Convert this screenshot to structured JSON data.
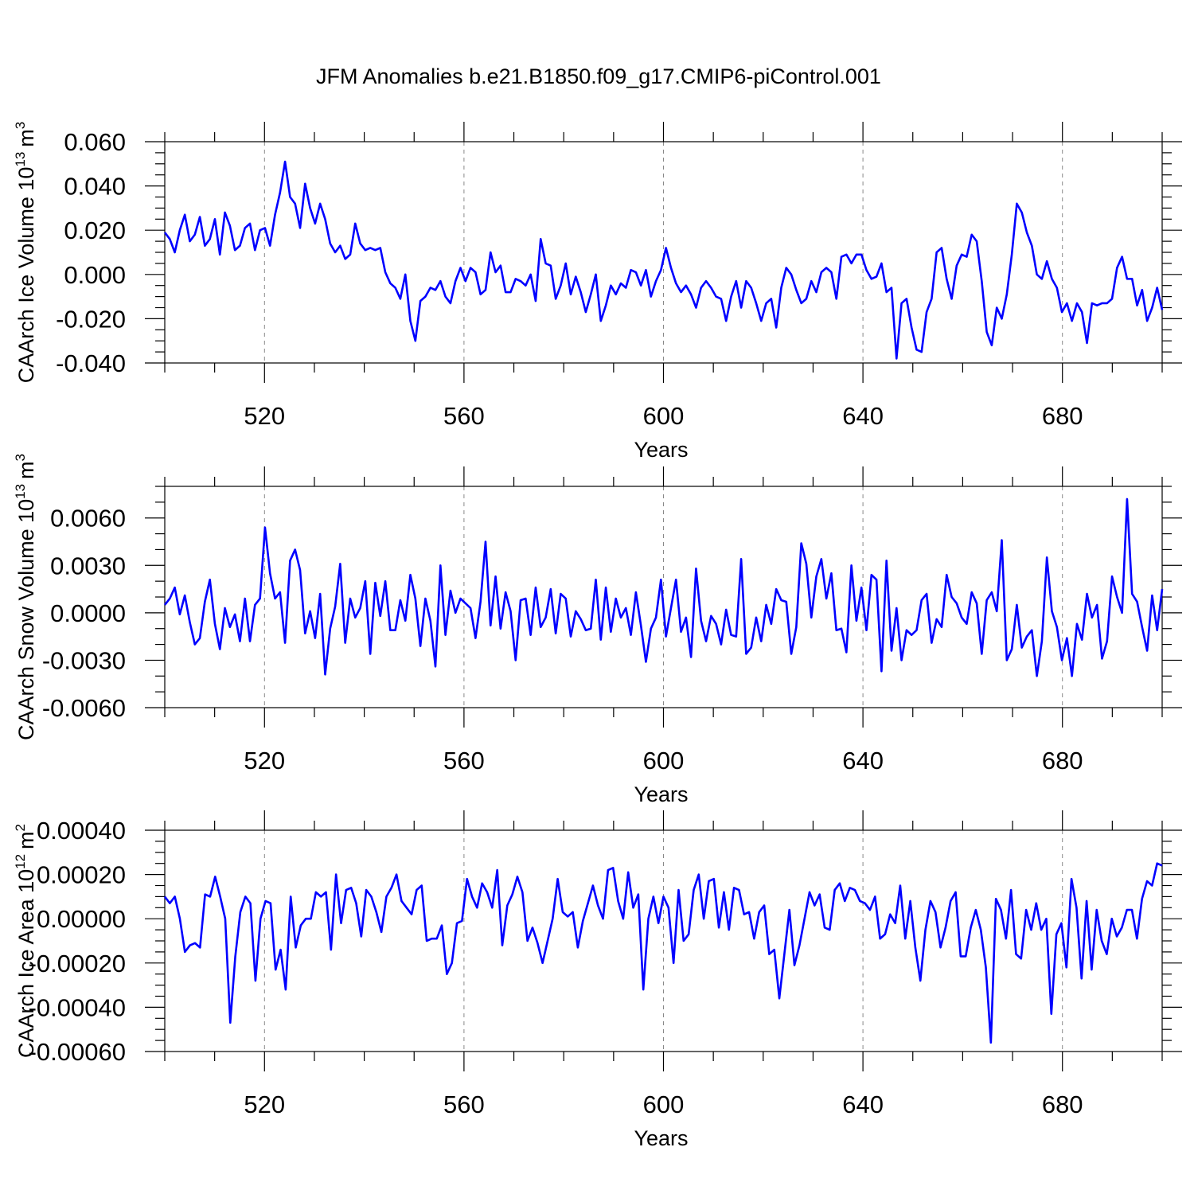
{
  "figure": {
    "title": "JFM Anomalies b.e21.B1850.f09_g17.CMIP6-piControl.001",
    "line_color": "#0000ff"
  },
  "chart_data": [
    {
      "type": "line",
      "ylabel_main": "CAArch Ice Volume 10",
      "ylabel_exp": "13",
      "ylabel_unit": "m",
      "ylabel_unit_exp": "3",
      "xlabel": "Years",
      "xlim": [
        500,
        700
      ],
      "ylim": [
        -0.04,
        0.06
      ],
      "x_ticks": [
        520,
        560,
        600,
        640,
        680
      ],
      "x_tick_labels": [
        "520",
        "560",
        "600",
        "640",
        "680"
      ],
      "y_ticks": [
        -0.04,
        -0.02,
        0.0,
        0.02,
        0.04,
        0.06
      ],
      "y_tick_labels": [
        "-0.040",
        "-0.020",
        "0.000",
        "0.020",
        "0.040",
        "0.060"
      ],
      "series": [
        {
          "name": "CAArch Ice Volume",
          "values": [
            0.019,
            0.016,
            0.01,
            0.02,
            0.027,
            0.015,
            0.018,
            0.026,
            0.013,
            0.016,
            0.025,
            0.009,
            0.028,
            0.022,
            0.011,
            0.013,
            0.021,
            0.023,
            0.011,
            0.02,
            0.021,
            0.013,
            0.027,
            0.037,
            0.051,
            0.035,
            0.032,
            0.021,
            0.041,
            0.03,
            0.023,
            0.032,
            0.025,
            0.014,
            0.01,
            0.013,
            0.007,
            0.009,
            0.023,
            0.014,
            0.011,
            0.012,
            0.011,
            0.012,
            0.001,
            -0.004,
            -0.006,
            -0.011,
            0.0,
            -0.021,
            -0.03,
            -0.012,
            -0.01,
            -0.006,
            -0.007,
            -0.003,
            -0.01,
            -0.013,
            -0.003,
            0.003,
            -0.003,
            0.003,
            0.001,
            -0.009,
            -0.007,
            0.01,
            0.001,
            0.004,
            -0.008,
            -0.008,
            -0.002,
            -0.003,
            -0.005,
            0.0,
            -0.012,
            0.016,
            0.005,
            0.004,
            -0.011,
            -0.005,
            0.005,
            -0.009,
            -0.001,
            -0.008,
            -0.017,
            -0.009,
            0.0,
            -0.021,
            -0.014,
            -0.005,
            -0.009,
            -0.004,
            -0.006,
            0.002,
            0.001,
            -0.005,
            0.002,
            -0.01,
            -0.003,
            0.002,
            0.012,
            0.003,
            -0.004,
            -0.008,
            -0.005,
            -0.009,
            -0.015,
            -0.006,
            -0.003,
            -0.006,
            -0.01,
            -0.011,
            -0.021,
            -0.01,
            -0.003,
            -0.015,
            -0.003,
            -0.006,
            -0.013,
            -0.021,
            -0.013,
            -0.011,
            -0.024,
            -0.006,
            0.003,
            0.0,
            -0.007,
            -0.013,
            -0.011,
            -0.003,
            -0.008,
            0.001,
            0.003,
            0.001,
            -0.011,
            0.008,
            0.009,
            0.005,
            0.009,
            0.009,
            0.002,
            -0.002,
            -0.001,
            0.005,
            -0.008,
            -0.006,
            -0.038,
            -0.013,
            -0.011,
            -0.024,
            -0.034,
            -0.035,
            -0.017,
            -0.011,
            0.01,
            0.012,
            -0.002,
            -0.011,
            0.004,
            0.009,
            0.008,
            0.018,
            0.015,
            -0.003,
            -0.026,
            -0.032,
            -0.015,
            -0.02,
            -0.009,
            0.009,
            0.032,
            0.028,
            0.019,
            0.013,
            0.0,
            -0.002,
            0.006,
            -0.002,
            -0.006,
            -0.017,
            -0.013,
            -0.021,
            -0.013,
            -0.017,
            -0.031,
            -0.013,
            -0.014,
            -0.013,
            -0.013,
            -0.011,
            0.003,
            0.008,
            -0.002,
            -0.002,
            -0.014,
            -0.007,
            -0.021,
            -0.015,
            -0.006,
            -0.016
          ]
        }
      ]
    },
    {
      "type": "line",
      "ylabel_main": "CAArch Snow Volume 10",
      "ylabel_exp": "13",
      "ylabel_unit": "m",
      "ylabel_unit_exp": "3",
      "xlabel": "Years",
      "xlim": [
        500,
        700
      ],
      "ylim": [
        -0.006,
        0.008
      ],
      "x_ticks": [
        520,
        560,
        600,
        640,
        680
      ],
      "x_tick_labels": [
        "520",
        "560",
        "600",
        "640",
        "680"
      ],
      "y_ticks": [
        -0.006,
        -0.003,
        0.0,
        0.003,
        0.006
      ],
      "y_tick_labels": [
        "-0.0060",
        "-0.0030",
        "0.0000",
        "0.0030",
        "0.0060"
      ],
      "series": [
        {
          "name": "CAArch Snow Volume",
          "values": [
            0.0005,
            0.0009,
            0.0016,
            -0.0001,
            0.0011,
            -0.0006,
            -0.002,
            -0.0016,
            0.0007,
            0.0021,
            -0.0007,
            -0.0023,
            0.0003,
            -0.0009,
            -0.0001,
            -0.0018,
            0.0009,
            -0.0018,
            0.0005,
            0.0009,
            0.0054,
            0.0025,
            0.0009,
            0.0013,
            -0.0019,
            0.0033,
            0.004,
            0.0027,
            -0.0013,
            0.0001,
            -0.0016,
            0.0012,
            -0.0039,
            -0.001,
            0.0004,
            0.0031,
            -0.0019,
            0.0009,
            -0.0003,
            0.0003,
            0.002,
            -0.0026,
            0.0019,
            -0.0002,
            0.002,
            -0.0011,
            -0.0011,
            0.0008,
            -0.0005,
            0.0024,
            0.0009,
            -0.0021,
            0.0009,
            -0.0005,
            -0.0034,
            0.003,
            -0.0014,
            0.0014,
            0.0,
            0.0009,
            0.0006,
            0.0003,
            -0.0016,
            0.0007,
            0.0045,
            -0.0008,
            0.0023,
            -0.001,
            0.0013,
            0.0001,
            -0.003,
            0.0008,
            0.0009,
            -0.0014,
            0.0016,
            -0.0009,
            -0.0003,
            0.0015,
            -0.0013,
            0.0012,
            0.0009,
            -0.0015,
            0.0001,
            -0.0004,
            -0.0011,
            -0.001,
            0.0021,
            -0.0017,
            0.0016,
            -0.0012,
            0.0009,
            -0.0003,
            0.0003,
            -0.0014,
            0.0013,
            -0.0008,
            -0.0031,
            -0.001,
            -0.0003,
            0.0021,
            -0.0015,
            0.0003,
            0.0021,
            -0.0012,
            -0.0003,
            -0.0028,
            0.0028,
            -0.0005,
            -0.0018,
            -0.0002,
            -0.0007,
            -0.002,
            0.0002,
            -0.0014,
            -0.0015,
            0.0034,
            -0.0026,
            -0.0022,
            -0.0003,
            -0.0018,
            0.0005,
            -0.0007,
            0.0015,
            0.0008,
            0.0007,
            -0.0026,
            -0.0009,
            0.0044,
            0.0031,
            -0.0003,
            0.0023,
            0.0034,
            0.0009,
            0.0025,
            -0.0011,
            -0.001,
            -0.0025,
            0.003,
            -0.0005,
            0.0016,
            -0.0011,
            0.0024,
            0.0021,
            -0.0037,
            0.0033,
            -0.0024,
            0.0003,
            -0.003,
            -0.0011,
            -0.0014,
            -0.0011,
            0.0008,
            0.0012,
            -0.0019,
            -0.0004,
            -0.0009,
            0.0024,
            0.001,
            0.0006,
            -0.0003,
            -0.0007,
            0.0013,
            0.0006,
            -0.0026,
            0.0008,
            0.0013,
            0.0001,
            0.0046,
            -0.003,
            -0.0023,
            0.0005,
            -0.0022,
            -0.0015,
            -0.0011,
            -0.004,
            -0.0018,
            0.0035,
            0.0001,
            -0.0009,
            -0.003,
            -0.0016,
            -0.004,
            -0.0007,
            -0.0017,
            0.0012,
            -0.0003,
            0.0005,
            -0.0029,
            -0.0018,
            0.0023,
            0.001,
            0.0,
            0.0072,
            0.0012,
            0.0007,
            -0.0009,
            -0.0024,
            0.0011,
            -0.0011,
            0.0015
          ]
        }
      ]
    },
    {
      "type": "line",
      "ylabel_main": "CAArch Ice Area 10",
      "ylabel_exp": "12",
      "ylabel_unit": "m",
      "ylabel_unit_exp": "2",
      "xlabel": "Years",
      "xlim": [
        500,
        700
      ],
      "ylim": [
        -0.0006,
        0.0004
      ],
      "x_ticks": [
        520,
        560,
        600,
        640,
        680
      ],
      "x_tick_labels": [
        "520",
        "560",
        "600",
        "640",
        "680"
      ],
      "y_ticks": [
        -0.0006,
        -0.0004,
        -0.0002,
        0.0,
        0.0002,
        0.0004
      ],
      "y_tick_labels": [
        "-0.00060",
        "-0.00040",
        "-0.00020",
        "0.00000",
        "0.00020",
        "0.00040"
      ],
      "series": [
        {
          "name": "CAArch Ice Area",
          "values": [
            0.0001,
            7e-05,
            0.0001,
            0.0,
            -0.00015,
            -0.00012,
            -0.00011,
            -0.00013,
            0.00011,
            0.0001,
            0.00019,
            0.0001,
            0.0,
            -0.00047,
            -0.00017,
            3e-05,
            0.0001,
            7e-05,
            -0.00028,
            0.0,
            8e-05,
            7e-05,
            -0.00023,
            -0.00014,
            -0.00032,
            0.0001,
            -0.00013,
            -3e-05,
            0.0,
            0.0,
            0.00012,
            0.0001,
            0.00012,
            -0.00014,
            0.0002,
            -2e-05,
            0.00013,
            0.00014,
            7e-05,
            -8e-05,
            0.00013,
            0.0001,
            3e-05,
            -6e-05,
            0.0001,
            0.00014,
            0.0002,
            8e-05,
            5e-05,
            2e-05,
            0.00013,
            0.00015,
            -0.0001,
            -9e-05,
            -9e-05,
            -3e-05,
            -0.00025,
            -0.0002,
            -2e-05,
            -1e-05,
            0.00018,
            0.0001,
            5e-05,
            0.00016,
            0.00012,
            5e-05,
            0.00022,
            -0.00012,
            6e-05,
            0.00011,
            0.00019,
            0.00012,
            -0.0001,
            -4e-05,
            -0.00011,
            -0.0002,
            -0.0001,
            0.0,
            0.00018,
            3e-05,
            1e-05,
            3e-05,
            -0.00013,
            -1e-05,
            7e-05,
            0.00015,
            6e-05,
            0.0,
            0.00022,
            0.00023,
            8e-05,
            0.0,
            0.00021,
            5e-05,
            0.00011,
            -0.00032,
            0.0,
            0.0001,
            -2e-05,
            0.0001,
            5e-05,
            -0.0002,
            0.00013,
            -0.0001,
            -7e-05,
            0.00013,
            0.0002,
            0.0,
            0.00017,
            0.00018,
            -4e-05,
            0.00012,
            -5e-05,
            0.00014,
            0.00013,
            2e-05,
            3e-05,
            -9e-05,
            3e-05,
            6e-05,
            -0.00016,
            -0.00014,
            -0.00036,
            -0.00016,
            4e-05,
            -0.00021,
            -0.00012,
            0.0,
            0.00012,
            6e-05,
            0.00011,
            -4e-05,
            -5e-05,
            0.00013,
            0.00016,
            8e-05,
            0.00014,
            0.00013,
            8e-05,
            7e-05,
            4e-05,
            0.0001,
            -9e-05,
            -7e-05,
            2e-05,
            -2e-05,
            0.00015,
            -9e-05,
            8e-05,
            -0.00013,
            -0.00028,
            -5e-05,
            8e-05,
            3e-05,
            -0.00013,
            -4e-05,
            8e-05,
            0.00012,
            -0.00017,
            -0.00017,
            -4e-05,
            4e-05,
            -5e-05,
            -0.00022,
            -0.00056,
            9e-05,
            4e-05,
            -9e-05,
            0.00013,
            -0.00016,
            -0.00018,
            4e-05,
            -5e-05,
            7e-05,
            -5e-05,
            0.0,
            -0.00043,
            -7e-05,
            -2e-05,
            -0.00022,
            0.00018,
            5e-05,
            -0.00027,
            8e-05,
            -0.00023,
            4e-05,
            -0.0001,
            -0.00016,
            0.0,
            -8e-05,
            -4e-05,
            4e-05,
            4e-05,
            -9e-05,
            9e-05,
            0.00017,
            0.00015,
            0.00025,
            0.00024
          ]
        }
      ]
    }
  ]
}
